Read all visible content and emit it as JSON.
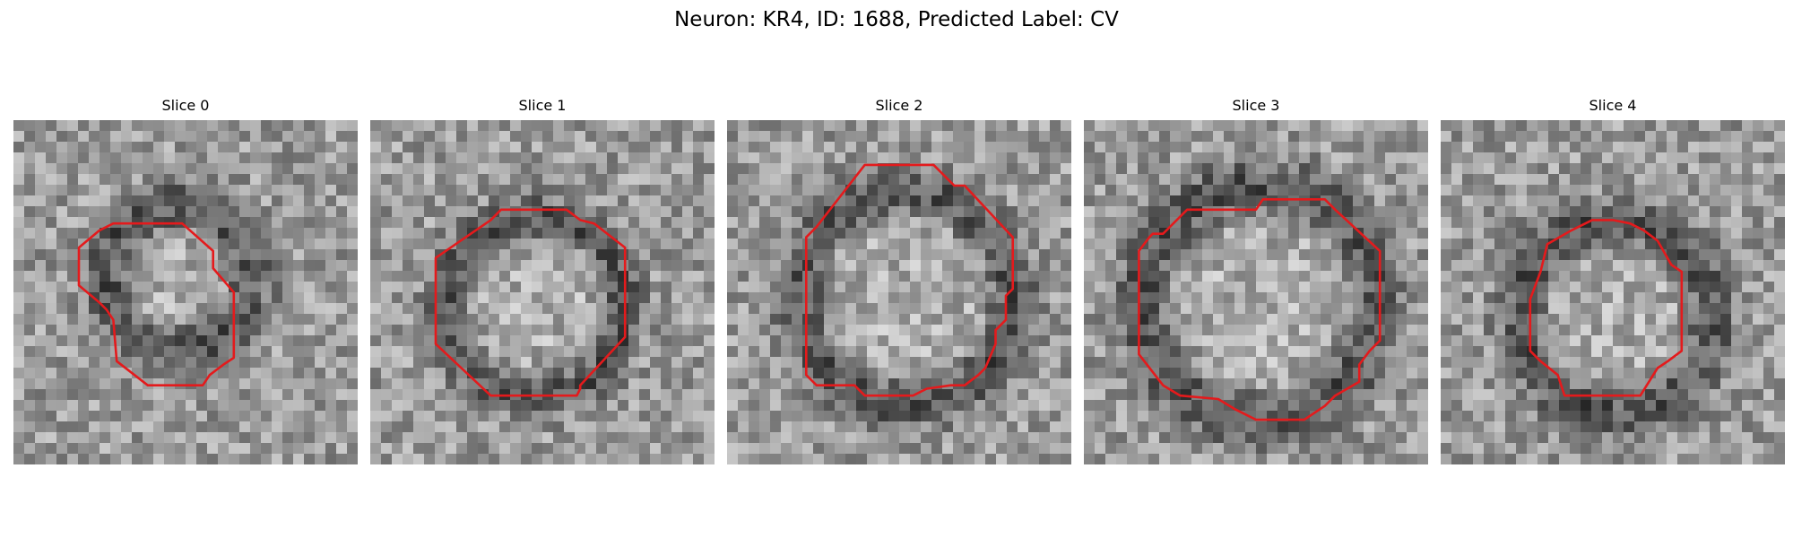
{
  "figure": {
    "suptitle": "Neuron: KR4, ID: 1688, Predicted Label: CV"
  },
  "panels": [
    {
      "title": "Slice 0"
    },
    {
      "title": "Slice 1"
    },
    {
      "title": "Slice 2"
    },
    {
      "title": "Slice 3"
    },
    {
      "title": "Slice 4"
    }
  ],
  "style": {
    "contour_color": "#e41a1c",
    "colormap": "gray"
  }
}
